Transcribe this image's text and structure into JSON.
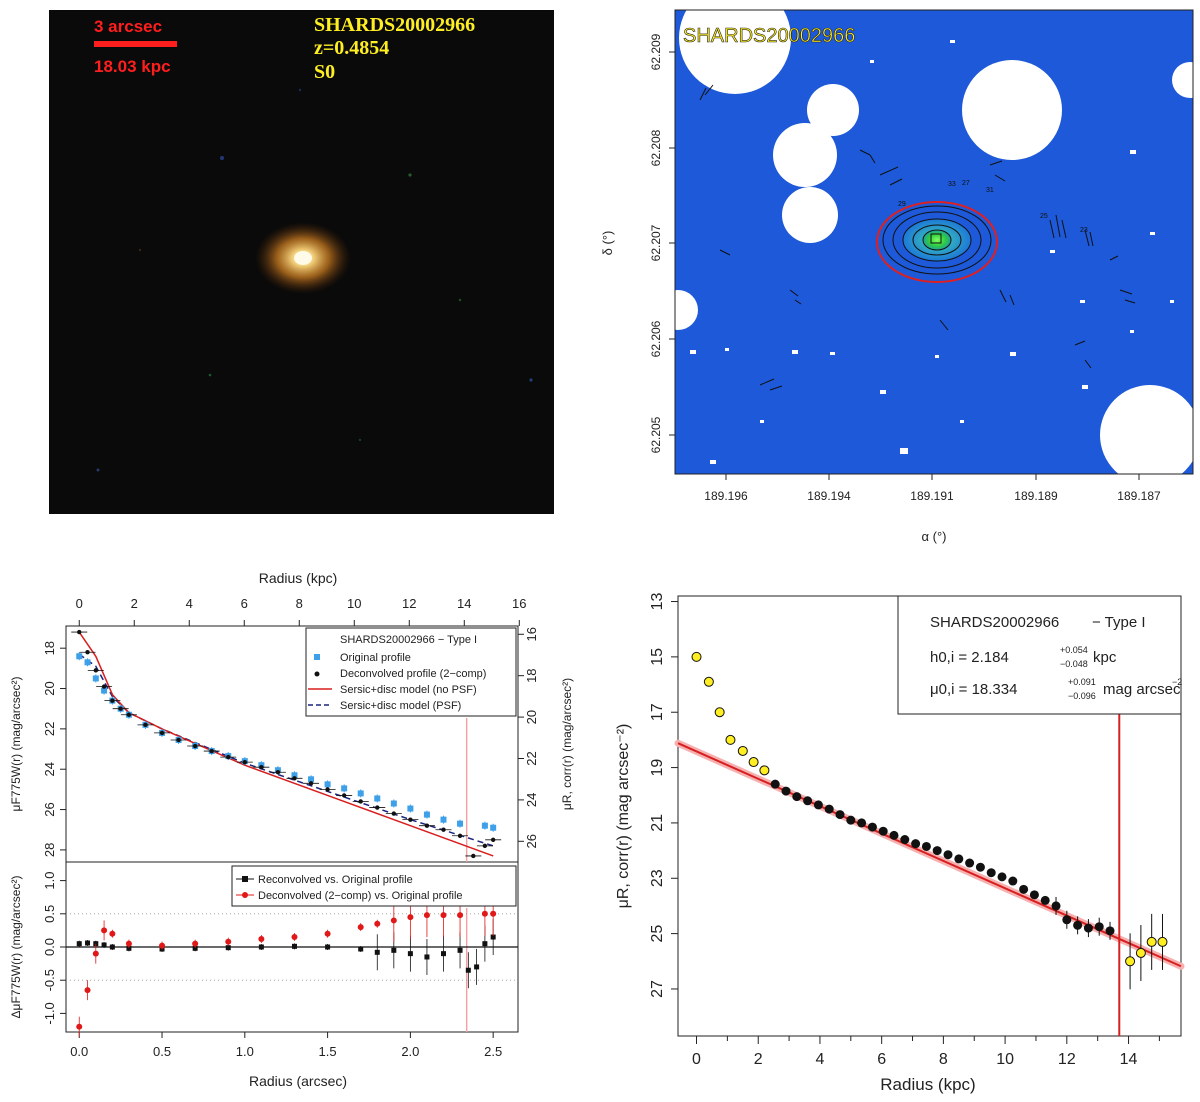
{
  "panel_a": {
    "scale_label_arcsec": "3 arcsec",
    "scale_label_kpc": "18.03 kpc",
    "name": "SHARDS20002966",
    "redshift": "z=0.4854",
    "morph": "S0",
    "colors": {
      "background": "#0a0a0a",
      "scale_text": "#ff1e1e",
      "info_text": "#ffee22",
      "core": "#fff7d6",
      "halo": "#c87a20"
    }
  },
  "panel_b": {
    "name": "SHARDS20002966",
    "xlabel": "α (°)",
    "ylabel": "δ (°)",
    "x_ticks": [
      "189.196",
      "189.194",
      "189.191",
      "189.189",
      "189.187"
    ],
    "y_ticks": [
      "62.209",
      "62.208",
      "62.207",
      "62.206",
      "62.205"
    ],
    "contour_labels": [
      "33",
      "31",
      "29",
      "27",
      "25",
      "23"
    ],
    "colors": {
      "background": "#1d59d8",
      "masks": "#ffffff",
      "ellipse": "#e02020",
      "core": "#2ecc40"
    }
  },
  "chart_data": [
    {
      "type": "scatter",
      "title": "Radius (kpc)",
      "top_axis_ticks": [
        "0",
        "2",
        "4",
        "6",
        "8",
        "10",
        "12",
        "14",
        "16"
      ],
      "xlabel": "Radius (arcsec)",
      "ylabel_left": "μF775W(r) (mag/arcsec²)",
      "ylabel_right": "μR, corr(r) (mag/arcsec²)",
      "xlim": [
        -0.08,
        2.65
      ],
      "ylim_top": [
        28.6,
        16.9
      ],
      "ylim_bottom": [
        -1.28,
        1.28
      ],
      "top_y_ticks": [
        "18",
        "20",
        "22",
        "24",
        "26",
        "28"
      ],
      "right_y_ticks": [
        "16",
        "18",
        "20",
        "22",
        "24",
        "26"
      ],
      "bottom_y_ticks": [
        "-1.0",
        "-0.5",
        "0.0",
        "0.5",
        "1.0"
      ],
      "x_ticks": [
        "0.0",
        "0.5",
        "1.0",
        "1.5",
        "2.0",
        "2.5"
      ],
      "vertical_line_x": 2.34,
      "legend_top": {
        "title": "SHARDS20002966  − Type I",
        "items": [
          "Original profile",
          "Deconvolved profile (2−comp)",
          "Sersic+disc model (no PSF)",
          "Sersic+disc model (PSF)"
        ]
      },
      "legend_bottom": {
        "items": [
          "Reconvolved vs. Original profile",
          "Deconvolved (2−comp) vs. Original profile"
        ]
      },
      "series_original": {
        "x": [
          0.0,
          0.05,
          0.1,
          0.15,
          0.2,
          0.25,
          0.3,
          0.4,
          0.5,
          0.6,
          0.7,
          0.8,
          0.9,
          1.0,
          1.1,
          1.2,
          1.3,
          1.4,
          1.5,
          1.6,
          1.7,
          1.8,
          1.9,
          2.0,
          2.1,
          2.2,
          2.3,
          2.45,
          2.5
        ],
        "y": [
          18.4,
          18.7,
          19.5,
          20.1,
          20.6,
          21.0,
          21.3,
          21.8,
          22.2,
          22.55,
          22.85,
          23.1,
          23.35,
          23.6,
          23.8,
          24.05,
          24.3,
          24.5,
          24.75,
          24.95,
          25.2,
          25.45,
          25.7,
          25.95,
          26.25,
          26.5,
          26.7,
          26.8,
          26.9
        ]
      },
      "series_deconvolved": {
        "x": [
          0.0,
          0.05,
          0.1,
          0.15,
          0.2,
          0.25,
          0.3,
          0.4,
          0.5,
          0.6,
          0.7,
          0.8,
          0.9,
          1.0,
          1.1,
          1.2,
          1.3,
          1.4,
          1.5,
          1.6,
          1.7,
          1.8,
          1.9,
          2.0,
          2.1,
          2.2,
          2.3,
          2.38,
          2.45,
          2.5
        ],
        "y": [
          17.2,
          18.2,
          19.1,
          19.9,
          20.6,
          21.0,
          21.3,
          21.8,
          22.2,
          22.55,
          22.85,
          23.1,
          23.4,
          23.65,
          23.9,
          24.15,
          24.45,
          24.7,
          25.0,
          25.3,
          25.6,
          25.9,
          26.2,
          26.5,
          26.8,
          27.0,
          27.3,
          28.3,
          27.8,
          27.5
        ]
      },
      "model_noPSF": {
        "x": [
          0.0,
          0.1,
          0.2,
          0.3,
          0.5,
          1.0,
          1.5,
          2.0,
          2.5
        ],
        "y": [
          17.2,
          18.4,
          20.3,
          21.2,
          22.0,
          23.8,
          25.3,
          26.8,
          28.3
        ]
      },
      "model_PSF": {
        "x": [
          0.0,
          0.1,
          0.2,
          0.3,
          0.5,
          1.0,
          1.5,
          2.0,
          2.5
        ],
        "y": [
          18.3,
          18.9,
          20.4,
          21.2,
          22.0,
          23.7,
          25.1,
          26.5,
          27.8
        ]
      },
      "residual_reconvolved": {
        "x": [
          0.0,
          0.05,
          0.1,
          0.15,
          0.2,
          0.3,
          0.5,
          0.7,
          0.9,
          1.1,
          1.3,
          1.5,
          1.7,
          1.8,
          1.9,
          2.0,
          2.1,
          2.2,
          2.3,
          2.35,
          2.4,
          2.45,
          2.5
        ],
        "y": [
          0.05,
          0.06,
          0.05,
          0.03,
          0.0,
          -0.02,
          -0.03,
          -0.02,
          -0.01,
          0.0,
          0.01,
          0.0,
          -0.03,
          -0.08,
          -0.05,
          -0.1,
          -0.15,
          -0.1,
          -0.05,
          -0.35,
          -0.3,
          0.05,
          0.15
        ]
      },
      "residual_deconvolved": {
        "x": [
          0.0,
          0.05,
          0.1,
          0.15,
          0.2,
          0.3,
          0.5,
          0.7,
          0.9,
          1.1,
          1.3,
          1.5,
          1.7,
          1.8,
          1.9,
          2.0,
          2.1,
          2.2,
          2.3,
          2.45,
          2.5
        ],
        "y": [
          -1.2,
          -0.65,
          -0.1,
          0.25,
          0.2,
          0.05,
          0.02,
          0.05,
          0.08,
          0.12,
          0.15,
          0.2,
          0.3,
          0.35,
          0.4,
          0.45,
          0.48,
          0.48,
          0.48,
          0.5,
          0.5
        ]
      }
    },
    {
      "type": "scatter",
      "xlabel": "Radius (kpc)",
      "ylabel": "μR, corr(r) (mag arcsec⁻²)",
      "xlim": [
        -0.6,
        15.7
      ],
      "ylim": [
        28.7,
        12.8
      ],
      "x_ticks": [
        "0",
        "2",
        "4",
        "6",
        "8",
        "10",
        "12",
        "14"
      ],
      "y_ticks": [
        "13",
        "15",
        "17",
        "19",
        "21",
        "23",
        "25",
        "27"
      ],
      "legend": {
        "name": "SHARDS20002966",
        "type": "− Type I",
        "h_label": "h0,i = 2.184",
        "h_unit": "kpc",
        "h_plus": "+0.054",
        "h_minus": "−0.048",
        "mu_label": "μ0,i = 18.334",
        "mu_unit": "mag arcsec",
        "mu_plus": "+0.091",
        "mu_minus": "−0.096"
      },
      "break_radius": 13.7,
      "fit_line": {
        "x": [
          -0.6,
          15.7
        ],
        "y": [
          18.12,
          26.18
        ]
      },
      "points_excluded_inner": {
        "x": [
          0.0,
          0.4,
          0.75,
          1.1,
          1.5,
          1.85,
          2.2
        ],
        "y": [
          15.0,
          15.9,
          17.0,
          18.0,
          18.4,
          18.8,
          19.1
        ]
      },
      "points_fitted": {
        "x": [
          2.55,
          2.9,
          3.25,
          3.6,
          3.95,
          4.3,
          4.65,
          5.0,
          5.35,
          5.7,
          6.05,
          6.4,
          6.75,
          7.1,
          7.45,
          7.8,
          8.15,
          8.5,
          8.85,
          9.2,
          9.55,
          9.9,
          10.25,
          10.6,
          10.95,
          11.3,
          11.65,
          12.0,
          12.35,
          12.7,
          13.05,
          13.4
        ],
        "y": [
          19.6,
          19.85,
          20.05,
          20.2,
          20.35,
          20.5,
          20.7,
          20.9,
          21.0,
          21.15,
          21.3,
          21.45,
          21.6,
          21.75,
          21.85,
          22.0,
          22.15,
          22.3,
          22.45,
          22.6,
          22.8,
          22.95,
          23.1,
          23.4,
          23.6,
          23.8,
          24.0,
          24.5,
          24.7,
          24.8,
          24.75,
          24.9
        ]
      },
      "points_excluded_outer": {
        "x": [
          14.05,
          14.4,
          14.75,
          15.1
        ],
        "y": [
          26.0,
          25.7,
          25.3,
          25.3
        ]
      }
    }
  ]
}
